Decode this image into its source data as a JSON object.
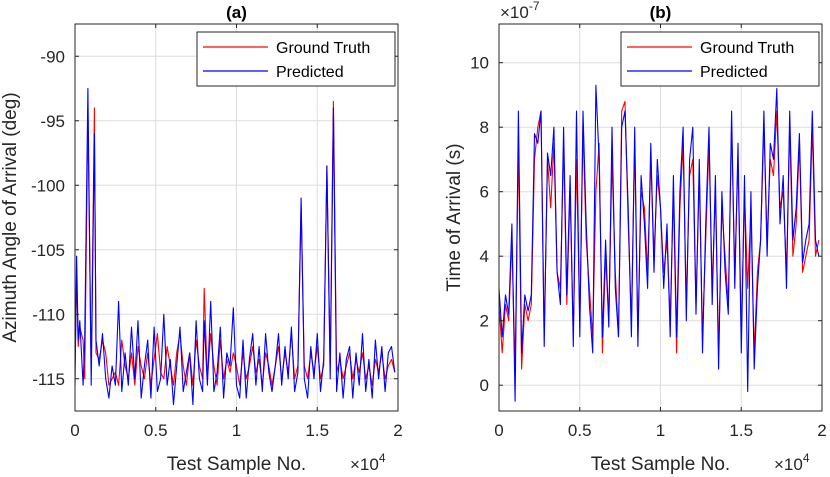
{
  "chart_data": [
    {
      "type": "line",
      "title": "(a)",
      "xlabel": "Test Sample No.",
      "ylabel": "Azimuth Angle of Arrival (deg)",
      "xlim": [
        0,
        2
      ],
      "ylim": [
        -117.5,
        -87.5
      ],
      "xticks": [
        0,
        0.5,
        1,
        1.5,
        2
      ],
      "xtick_labels": [
        "0",
        "0.5",
        "1",
        "1.5",
        "2"
      ],
      "yticks": [
        -115,
        -110,
        -105,
        -100,
        -95,
        -90
      ],
      "ytick_labels": [
        "-115",
        "-110",
        "-105",
        "-100",
        "-95",
        "-90"
      ],
      "x_exponent": "×10",
      "x_exponent_power": "4",
      "legend_position": "top-right",
      "grid": true,
      "series": [
        {
          "name": "Ground Truth",
          "color": "#ff0000",
          "x": [
            0,
            0.01,
            0.02,
            0.03,
            0.05,
            0.06,
            0.08,
            0.1,
            0.12,
            0.13,
            0.15,
            0.17,
            0.19,
            0.21,
            0.23,
            0.25,
            0.27,
            0.29,
            0.31,
            0.33,
            0.35,
            0.37,
            0.39,
            0.41,
            0.43,
            0.45,
            0.47,
            0.49,
            0.51,
            0.53,
            0.55,
            0.57,
            0.59,
            0.61,
            0.63,
            0.65,
            0.67,
            0.69,
            0.71,
            0.73,
            0.75,
            0.77,
            0.79,
            0.8,
            0.82,
            0.84,
            0.86,
            0.88,
            0.9,
            0.92,
            0.94,
            0.96,
            0.98,
            1.0,
            1.02,
            1.04,
            1.06,
            1.08,
            1.1,
            1.12,
            1.14,
            1.16,
            1.18,
            1.2,
            1.22,
            1.24,
            1.26,
            1.28,
            1.3,
            1.32,
            1.34,
            1.36,
            1.38,
            1.4,
            1.42,
            1.44,
            1.46,
            1.48,
            1.5,
            1.52,
            1.54,
            1.56,
            1.58,
            1.6,
            1.62,
            1.64,
            1.66,
            1.68,
            1.7,
            1.72,
            1.74,
            1.76,
            1.78,
            1.8,
            1.82,
            1.84,
            1.86,
            1.88,
            1.9,
            1.92,
            1.94,
            1.96,
            1.98
          ],
          "values": [
            -114,
            -107,
            -112.5,
            -111,
            -112,
            -115,
            -94.5,
            -114.5,
            -94,
            -113,
            -113.5,
            -112,
            -113,
            -115.5,
            -115,
            -114.5,
            -115.5,
            -112,
            -114,
            -115,
            -113,
            -115.5,
            -112.5,
            -114,
            -115,
            -113,
            -115.5,
            -113.5,
            -111.5,
            -114.5,
            -115,
            -112.5,
            -114,
            -115.5,
            -113,
            -111.5,
            -114,
            -115.5,
            -113,
            -115.5,
            -112,
            -114,
            -115,
            -108,
            -115,
            -111.5,
            -114,
            -115.5,
            -112,
            -115,
            -113.5,
            -114.5,
            -113,
            -114,
            -115.5,
            -113,
            -115,
            -114,
            -112.5,
            -114.5,
            -113.5,
            -115.5,
            -113,
            -114,
            -115.5,
            -114,
            -112.5,
            -115,
            -113,
            -114.5,
            -111.5,
            -115,
            -114,
            -101.5,
            -114,
            -115,
            -113,
            -114.5,
            -112.5,
            -115,
            -114,
            -98.5,
            -114,
            -93.5,
            -114.5,
            -113.5,
            -115,
            -114,
            -113,
            -115,
            -113.5,
            -114.5,
            -113,
            -115,
            -114,
            -115.5,
            -113.5,
            -114.5,
            -113,
            -115,
            -114,
            -113.5,
            -114.5
          ]
        },
        {
          "name": "Predicted",
          "color": "#0000ff",
          "x": [
            0,
            0.01,
            0.02,
            0.03,
            0.05,
            0.06,
            0.08,
            0.1,
            0.12,
            0.13,
            0.15,
            0.17,
            0.19,
            0.21,
            0.23,
            0.25,
            0.27,
            0.29,
            0.31,
            0.33,
            0.35,
            0.37,
            0.39,
            0.41,
            0.43,
            0.45,
            0.47,
            0.49,
            0.51,
            0.53,
            0.55,
            0.57,
            0.59,
            0.61,
            0.63,
            0.65,
            0.67,
            0.69,
            0.71,
            0.73,
            0.75,
            0.77,
            0.79,
            0.8,
            0.82,
            0.84,
            0.86,
            0.88,
            0.9,
            0.92,
            0.94,
            0.96,
            0.98,
            1.0,
            1.02,
            1.04,
            1.06,
            1.08,
            1.1,
            1.12,
            1.14,
            1.16,
            1.18,
            1.2,
            1.22,
            1.24,
            1.26,
            1.28,
            1.3,
            1.32,
            1.34,
            1.36,
            1.38,
            1.4,
            1.42,
            1.44,
            1.46,
            1.48,
            1.5,
            1.52,
            1.54,
            1.56,
            1.58,
            1.6,
            1.62,
            1.64,
            1.66,
            1.68,
            1.7,
            1.72,
            1.74,
            1.76,
            1.78,
            1.8,
            1.82,
            1.84,
            1.86,
            1.88,
            1.9,
            1.92,
            1.94,
            1.96,
            1.98
          ],
          "values": [
            -115.5,
            -105.5,
            -112,
            -110.5,
            -115.5,
            -112,
            -92.5,
            -115.5,
            -96,
            -112,
            -114,
            -111.5,
            -115,
            -116.5,
            -114,
            -115.5,
            -109,
            -116,
            -113,
            -115.5,
            -111,
            -115,
            -110.5,
            -116.5,
            -114,
            -112,
            -116.5,
            -111,
            -116,
            -115,
            -110,
            -115.5,
            -113.5,
            -117,
            -114,
            -111,
            -116,
            -114.5,
            -113,
            -117,
            -110.5,
            -115,
            -116,
            -110.5,
            -115.5,
            -109,
            -116,
            -114.5,
            -111,
            -116.5,
            -113,
            -114,
            -109.5,
            -115.5,
            -116.5,
            -112,
            -116.5,
            -113.5,
            -111.5,
            -115.5,
            -112.5,
            -116,
            -111.5,
            -114.5,
            -116,
            -114,
            -111.5,
            -115.5,
            -112.5,
            -115,
            -111,
            -116,
            -114.5,
            -101,
            -115,
            -116.5,
            -112.5,
            -115,
            -111.5,
            -116,
            -113.5,
            -98.5,
            -115,
            -94,
            -116,
            -113,
            -116.5,
            -113.5,
            -112.5,
            -116.5,
            -113,
            -115.5,
            -111.5,
            -116,
            -113.5,
            -116.5,
            -112,
            -115,
            -112.5,
            -116,
            -113,
            -112.5,
            -114.5
          ]
        }
      ]
    },
    {
      "type": "line",
      "title": "(b)",
      "xlabel": "Test Sample No.",
      "ylabel": "Time of Arrival (s)",
      "xlim": [
        0,
        2
      ],
      "ylim": [
        -0.8,
        11.2
      ],
      "xticks": [
        0,
        0.5,
        1,
        1.5,
        2
      ],
      "xtick_labels": [
        "0",
        "0.5",
        "1",
        "1.5",
        "2"
      ],
      "yticks": [
        0,
        2,
        4,
        6,
        8,
        10
      ],
      "ytick_labels": [
        "0",
        "2",
        "4",
        "6",
        "8",
        "10"
      ],
      "x_exponent": "×10",
      "x_exponent_power": "4",
      "y_exponent": "×10",
      "y_exponent_power": "-7",
      "legend_position": "top-right",
      "grid": true,
      "series": [
        {
          "name": "Ground Truth",
          "color": "#ff0000",
          "x": [
            0,
            0.02,
            0.04,
            0.06,
            0.08,
            0.1,
            0.12,
            0.14,
            0.16,
            0.18,
            0.2,
            0.22,
            0.24,
            0.26,
            0.28,
            0.3,
            0.32,
            0.34,
            0.36,
            0.38,
            0.4,
            0.42,
            0.44,
            0.46,
            0.48,
            0.5,
            0.52,
            0.54,
            0.56,
            0.58,
            0.6,
            0.62,
            0.64,
            0.66,
            0.68,
            0.7,
            0.72,
            0.74,
            0.76,
            0.78,
            0.8,
            0.82,
            0.84,
            0.86,
            0.88,
            0.9,
            0.92,
            0.94,
            0.96,
            0.98,
            1.0,
            1.02,
            1.04,
            1.06,
            1.08,
            1.1,
            1.12,
            1.14,
            1.16,
            1.18,
            1.2,
            1.22,
            1.24,
            1.26,
            1.28,
            1.3,
            1.32,
            1.34,
            1.36,
            1.38,
            1.4,
            1.42,
            1.44,
            1.46,
            1.48,
            1.5,
            1.52,
            1.54,
            1.56,
            1.58,
            1.6,
            1.62,
            1.64,
            1.66,
            1.68,
            1.7,
            1.72,
            1.74,
            1.76,
            1.78,
            1.8,
            1.82,
            1.84,
            1.86,
            1.88,
            1.9,
            1.92,
            1.94,
            1.96,
            1.98
          ],
          "values": [
            2.5,
            1.0,
            2.5,
            2.0,
            4.5,
            0.5,
            7.5,
            0.5,
            2.5,
            2.0,
            2.5,
            7.0,
            8.0,
            8.5,
            1.5,
            7.0,
            5.5,
            7.5,
            3.5,
            3.0,
            7.5,
            2.5,
            6.0,
            1.5,
            7.0,
            2.0,
            8.0,
            4.5,
            3.0,
            1.5,
            6.0,
            7.5,
            1.0,
            4.0,
            2.0,
            7.0,
            3.5,
            1.5,
            8.5,
            8.8,
            5.0,
            2.0,
            7.5,
            1.5,
            6.0,
            5.5,
            3.5,
            7.0,
            4.0,
            6.5,
            5.5,
            3.5,
            4.5,
            2.0,
            6.0,
            1.0,
            5.5,
            7.5,
            2.5,
            6.5,
            7.0,
            2.5,
            6.5,
            1.5,
            4.5,
            7.5,
            3.0,
            6.0,
            1.0,
            5.5,
            4.0,
            2.5,
            8.0,
            3.5,
            7.0,
            1.5,
            6.0,
            3.0,
            5.5,
            1.0,
            3.5,
            4.5,
            8.0,
            4.5,
            7.0,
            6.5,
            8.5,
            5.5,
            6.0,
            3.5,
            8.0,
            4.0,
            5.0,
            7.5,
            3.5,
            4.0,
            4.5,
            8.0,
            4.0,
            4.5
          ]
        },
        {
          "name": "Predicted",
          "color": "#0000ff",
          "x": [
            0,
            0.02,
            0.04,
            0.06,
            0.08,
            0.1,
            0.12,
            0.14,
            0.16,
            0.18,
            0.2,
            0.22,
            0.24,
            0.26,
            0.28,
            0.3,
            0.32,
            0.34,
            0.36,
            0.38,
            0.4,
            0.42,
            0.44,
            0.46,
            0.48,
            0.5,
            0.52,
            0.54,
            0.56,
            0.58,
            0.6,
            0.62,
            0.64,
            0.66,
            0.68,
            0.7,
            0.72,
            0.74,
            0.76,
            0.78,
            0.8,
            0.82,
            0.84,
            0.86,
            0.88,
            0.9,
            0.92,
            0.94,
            0.96,
            0.98,
            1.0,
            1.02,
            1.04,
            1.06,
            1.08,
            1.1,
            1.12,
            1.14,
            1.16,
            1.18,
            1.2,
            1.22,
            1.24,
            1.26,
            1.28,
            1.3,
            1.32,
            1.34,
            1.36,
            1.38,
            1.4,
            1.42,
            1.44,
            1.46,
            1.48,
            1.5,
            1.52,
            1.54,
            1.56,
            1.58,
            1.6,
            1.62,
            1.64,
            1.66,
            1.68,
            1.7,
            1.72,
            1.74,
            1.76,
            1.78,
            1.8,
            1.82,
            1.84,
            1.86,
            1.88,
            1.9,
            1.92,
            1.94,
            1.96,
            1.98
          ],
          "values": [
            3.0,
            1.5,
            2.8,
            2.2,
            5.0,
            -0.5,
            8.5,
            1.0,
            2.8,
            2.3,
            2.8,
            7.8,
            7.5,
            8.5,
            1.2,
            7.2,
            6.5,
            8.0,
            3.5,
            2.5,
            8.0,
            2.8,
            6.5,
            1.2,
            8.5,
            1.5,
            8.5,
            5.0,
            2.5,
            1.0,
            9.3,
            7.0,
            1.5,
            4.5,
            1.8,
            8.0,
            3.0,
            1.5,
            8.0,
            8.5,
            5.5,
            1.5,
            8.0,
            1.2,
            6.5,
            5.0,
            3.0,
            7.5,
            3.5,
            7.0,
            5.5,
            3.0,
            5.0,
            1.5,
            6.5,
            1.5,
            6.0,
            8.0,
            2.0,
            7.0,
            8.0,
            2.2,
            7.0,
            1.0,
            5.0,
            8.0,
            2.5,
            6.5,
            0.5,
            6.0,
            3.5,
            2.2,
            8.5,
            3.0,
            7.5,
            1.0,
            6.5,
            -0.2,
            6.0,
            0.5,
            3.0,
            4.5,
            8.5,
            4.0,
            7.5,
            7.0,
            9.2,
            5.0,
            6.5,
            3.0,
            8.5,
            4.5,
            5.5,
            7.8,
            3.8,
            4.5,
            5.0,
            8.5,
            4.5,
            4.0
          ]
        }
      ]
    }
  ]
}
